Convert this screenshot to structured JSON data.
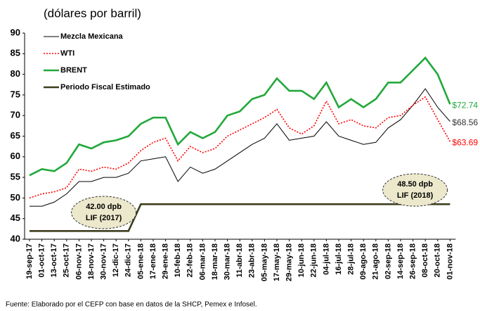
{
  "chart_data": {
    "type": "line",
    "subtitle": "(dólares por barril)",
    "source": "Fuente: Elaborado por el CEFP con base en datos de la SHCP, Pemex e Infosel.",
    "categories": [
      "19-sep-17",
      "01-oct-17",
      "13-oct-17",
      "25-oct-17",
      "06-nov-17",
      "18-nov-17",
      "30-nov-17",
      "12-dic-17",
      "24-dic-17",
      "05-ene-18",
      "17-ene-18",
      "29-ene-18",
      "10-feb-18",
      "22-feb-18",
      "06-mar-18",
      "18-mar-18",
      "30-mar-18",
      "11-abr-18",
      "23-abr-18",
      "05-may-18",
      "17-may-18",
      "29-may-18",
      "10-jun-18",
      "22-jun-18",
      "04-jul-18",
      "16-jul-18",
      "28-jul-18",
      "09-ago-18",
      "21-ago-18",
      "02-sep-18",
      "14-sep-18",
      "26-sep-18",
      "08-oct-18",
      "20-oct-18",
      "01-nov-18"
    ],
    "series": [
      {
        "name": "Mezcla Mexicana",
        "color": "#000000",
        "style": "solid",
        "width": 1,
        "values": [
          48,
          48,
          49,
          51,
          54,
          54,
          55,
          55,
          56,
          59,
          59.5,
          60,
          54,
          57.5,
          56,
          57,
          59,
          61,
          63,
          64.5,
          68,
          64,
          64.5,
          65,
          68.5,
          65,
          64,
          63,
          63.5,
          67,
          69,
          72.5,
          76.5,
          72,
          68.56
        ],
        "value_labels": [
          null,
          null,
          null,
          null,
          null,
          null,
          null,
          null,
          null,
          null,
          null,
          null,
          null,
          null,
          null,
          null,
          null,
          null,
          null,
          null,
          null,
          null,
          null,
          null,
          null,
          null,
          null,
          null,
          null,
          null,
          null,
          null,
          null,
          null,
          "$68.56"
        ]
      },
      {
        "name": "WTI",
        "color": "#ff0000",
        "style": "dotted",
        "width": 1.6,
        "values": [
          50,
          51,
          51.5,
          52.5,
          57,
          56.5,
          57.5,
          57,
          58.5,
          61.5,
          63.5,
          64.5,
          59,
          62.5,
          61,
          62,
          65,
          66.5,
          68,
          69.5,
          71.5,
          67,
          65.5,
          67.5,
          73.5,
          68,
          69,
          67.5,
          67,
          69.5,
          70,
          72.5,
          74.5,
          69,
          63.69
        ],
        "value_labels": [
          null,
          null,
          null,
          null,
          null,
          null,
          null,
          null,
          null,
          null,
          null,
          null,
          null,
          null,
          null,
          null,
          null,
          null,
          null,
          null,
          null,
          null,
          null,
          null,
          null,
          null,
          null,
          null,
          null,
          null,
          null,
          null,
          null,
          null,
          "$63.69"
        ]
      },
      {
        "name": "BRENT",
        "color": "#22a83a",
        "style": "solid",
        "width": 2.6,
        "values": [
          55.5,
          57,
          56.5,
          58.5,
          63,
          62,
          63.5,
          64,
          65,
          68,
          69.5,
          69.5,
          63,
          66,
          64.5,
          66,
          70,
          71,
          74,
          75,
          79,
          76,
          76,
          74,
          78,
          72,
          74,
          72,
          74,
          78,
          78,
          81,
          84,
          80,
          72.74
        ],
        "value_labels": [
          null,
          null,
          null,
          null,
          null,
          null,
          null,
          null,
          null,
          null,
          null,
          null,
          null,
          null,
          null,
          null,
          null,
          null,
          null,
          null,
          null,
          null,
          null,
          null,
          null,
          null,
          null,
          null,
          null,
          null,
          null,
          null,
          null,
          null,
          "$72.74"
        ]
      },
      {
        "name": "Periodo Fiscal Estimado",
        "color": "#3d3d1e",
        "style": "solid",
        "width": 2.6,
        "values": [
          42,
          42,
          42,
          42,
          42,
          42,
          42,
          42,
          42,
          48.5,
          48.5,
          48.5,
          48.5,
          48.5,
          48.5,
          48.5,
          48.5,
          48.5,
          48.5,
          48.5,
          48.5,
          48.5,
          48.5,
          48.5,
          48.5,
          48.5,
          48.5,
          48.5,
          48.5,
          48.5,
          48.5,
          48.5,
          48.5,
          48.5,
          48.5
        ]
      }
    ],
    "annotations": [
      {
        "lines": [
          "42.00 dpb",
          "LIF (2017)"
        ],
        "category": 6
      },
      {
        "lines": [
          "48.50 dpb",
          "LIF (2018)"
        ],
        "category": 31
      }
    ],
    "ylim": [
      40,
      90
    ],
    "yticks": [
      40,
      45,
      50,
      55,
      60,
      65,
      70,
      75,
      80,
      85,
      90
    ],
    "grid": false,
    "legend": "upper left"
  }
}
